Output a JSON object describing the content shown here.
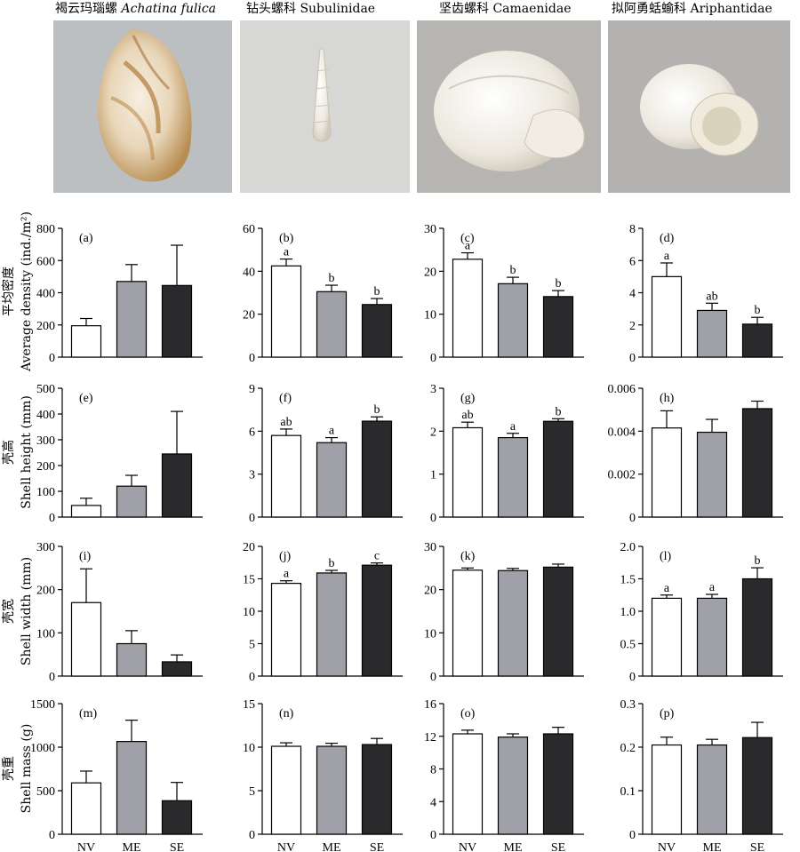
{
  "photos": [
    {
      "name_cn": "褐云玛瑙螺",
      "name_latin": "Achatina fulica",
      "latin_italic": true
    },
    {
      "name_cn": "钻头螺科",
      "name_latin": "Subulinidae",
      "latin_italic": false
    },
    {
      "name_cn": "坚齿螺科",
      "name_latin": "Camaenidae",
      "latin_italic": false
    },
    {
      "name_cn": "拟阿勇蛞蝓科",
      "name_latin": "Ariphantidae",
      "latin_italic": false
    }
  ],
  "row_labels": [
    {
      "cn": "平均密度",
      "en": "Average density (ind./m²)"
    },
    {
      "cn": "壳高",
      "en": "Shell height (mm)"
    },
    {
      "cn": "壳宽",
      "en": "Shell width (mm)"
    },
    {
      "cn": "壳重",
      "en": "Shell mass (g)"
    }
  ],
  "colors": {
    "NV": "#ffffff",
    "ME": "#a0a0a8",
    "SE": "#2a2a2c"
  },
  "chart_data": [
    {
      "panel": "(a)",
      "type": "bar",
      "categories": [
        "NV",
        "ME",
        "SE"
      ],
      "values": [
        195,
        470,
        445
      ],
      "errors": [
        45,
        105,
        250
      ],
      "letters": [
        "",
        "",
        ""
      ],
      "ylim": [
        0,
        800
      ],
      "yticks": [
        0,
        200,
        400,
        600,
        800
      ]
    },
    {
      "panel": "(e)",
      "type": "bar",
      "categories": [
        "NV",
        "ME",
        "SE"
      ],
      "values": [
        45,
        120,
        245
      ],
      "errors": [
        28,
        42,
        165
      ],
      "letters": [
        "",
        "",
        ""
      ],
      "ylim": [
        0,
        500
      ],
      "yticks": [
        0,
        100,
        200,
        300,
        400,
        500
      ]
    },
    {
      "panel": "(i)",
      "type": "bar",
      "categories": [
        "NV",
        "ME",
        "SE"
      ],
      "values": [
        170,
        75,
        33
      ],
      "errors": [
        78,
        30,
        16
      ],
      "letters": [
        "",
        "",
        ""
      ],
      "ylim": [
        0,
        300
      ],
      "yticks": [
        0,
        100,
        200,
        300
      ]
    },
    {
      "panel": "(m)",
      "type": "bar",
      "categories": [
        "NV",
        "ME",
        "SE"
      ],
      "values": [
        590,
        1065,
        385
      ],
      "errors": [
        135,
        245,
        210
      ],
      "letters": [
        "",
        "",
        ""
      ],
      "ylim": [
        0,
        1500
      ],
      "yticks": [
        0,
        500,
        1000,
        1500
      ]
    },
    {
      "panel": "(b)",
      "type": "bar",
      "categories": [
        "NV",
        "ME",
        "SE"
      ],
      "values": [
        42.5,
        30.5,
        24.5
      ],
      "errors": [
        3.2,
        3,
        2.8
      ],
      "letters": [
        "a",
        "b",
        "b"
      ],
      "ylim": [
        0,
        60
      ],
      "yticks": [
        0,
        20,
        40,
        60
      ]
    },
    {
      "panel": "(f)",
      "type": "bar",
      "categories": [
        "NV",
        "ME",
        "SE"
      ],
      "values": [
        5.7,
        5.2,
        6.7
      ],
      "errors": [
        0.45,
        0.35,
        0.3
      ],
      "letters": [
        "ab",
        "a",
        "b"
      ],
      "ylim": [
        0,
        9
      ],
      "yticks": [
        0,
        3,
        6,
        9
      ]
    },
    {
      "panel": "(j)",
      "type": "bar",
      "categories": [
        "NV",
        "ME",
        "SE"
      ],
      "values": [
        14.3,
        15.9,
        17.1
      ],
      "errors": [
        0.4,
        0.4,
        0.35
      ],
      "letters": [
        "a",
        "b",
        "c"
      ],
      "ylim": [
        0,
        20
      ],
      "yticks": [
        0,
        5,
        10,
        15,
        20
      ]
    },
    {
      "panel": "(n)",
      "type": "bar",
      "categories": [
        "NV",
        "ME",
        "SE"
      ],
      "values": [
        10.1,
        10.1,
        10.3
      ],
      "errors": [
        0.4,
        0.35,
        0.7
      ],
      "letters": [
        "",
        "",
        ""
      ],
      "ylim": [
        0,
        15
      ],
      "yticks": [
        0,
        5,
        10,
        15
      ]
    },
    {
      "panel": "(c)",
      "type": "bar",
      "categories": [
        "NV",
        "ME",
        "SE"
      ],
      "values": [
        22.8,
        17.1,
        14.1
      ],
      "errors": [
        1.5,
        1.5,
        1.4
      ],
      "letters": [
        "a",
        "b",
        "b"
      ],
      "ylim": [
        0,
        30
      ],
      "yticks": [
        0,
        10,
        20,
        30
      ]
    },
    {
      "panel": "(g)",
      "type": "bar",
      "categories": [
        "NV",
        "ME",
        "SE"
      ],
      "values": [
        2.08,
        1.85,
        2.23
      ],
      "errors": [
        0.13,
        0.1,
        0.06
      ],
      "letters": [
        "ab",
        "a",
        "b"
      ],
      "ylim": [
        0,
        3
      ],
      "yticks": [
        0,
        1,
        2,
        3
      ]
    },
    {
      "panel": "(k)",
      "type": "bar",
      "categories": [
        "NV",
        "ME",
        "SE"
      ],
      "values": [
        24.5,
        24.4,
        25.2
      ],
      "errors": [
        0.5,
        0.5,
        0.7
      ],
      "letters": [
        "",
        "",
        ""
      ],
      "ylim": [
        0,
        30
      ],
      "yticks": [
        0,
        10,
        20,
        30
      ]
    },
    {
      "panel": "(o)",
      "type": "bar",
      "categories": [
        "NV",
        "ME",
        "SE"
      ],
      "values": [
        12.3,
        11.9,
        12.3
      ],
      "errors": [
        0.45,
        0.4,
        0.8
      ],
      "letters": [
        "",
        "",
        ""
      ],
      "ylim": [
        0,
        16
      ],
      "yticks": [
        0,
        4,
        8,
        12,
        16
      ]
    },
    {
      "panel": "(d)",
      "type": "bar",
      "categories": [
        "NV",
        "ME",
        "SE"
      ],
      "values": [
        5.0,
        2.9,
        2.05
      ],
      "errors": [
        0.85,
        0.45,
        0.42
      ],
      "letters": [
        "a",
        "ab",
        "b"
      ],
      "ylim": [
        0,
        8
      ],
      "yticks": [
        0,
        2,
        4,
        6,
        8
      ]
    },
    {
      "panel": "(h)",
      "type": "bar",
      "categories": [
        "NV",
        "ME",
        "SE"
      ],
      "values": [
        0.00415,
        0.00395,
        0.00505
      ],
      "errors": [
        0.0008,
        0.0006,
        0.00035
      ],
      "letters": [
        "",
        "",
        ""
      ],
      "ylim": [
        0,
        0.006
      ],
      "yticks": [
        0,
        0.002,
        0.004,
        0.006
      ],
      "tick_labels": [
        "0",
        "0.002",
        "0.004",
        "0.006"
      ]
    },
    {
      "panel": "(l)",
      "type": "bar",
      "categories": [
        "NV",
        "ME",
        "SE"
      ],
      "values": [
        1.2,
        1.2,
        1.5
      ],
      "errors": [
        0.05,
        0.06,
        0.17
      ],
      "letters": [
        "a",
        "a",
        "b"
      ],
      "ylim": [
        0,
        2
      ],
      "yticks": [
        0,
        0.5,
        1,
        1.5,
        2
      ],
      "tick_labels": [
        "0",
        "0.5",
        "1.0",
        "1.5",
        "2.0"
      ]
    },
    {
      "panel": "(p)",
      "type": "bar",
      "categories": [
        "NV",
        "ME",
        "SE"
      ],
      "values": [
        0.205,
        0.205,
        0.222
      ],
      "errors": [
        0.018,
        0.013,
        0.035
      ],
      "letters": [
        "",
        "",
        ""
      ],
      "ylim": [
        0,
        0.3
      ],
      "yticks": [
        0,
        0.1,
        0.2,
        0.3
      ],
      "tick_labels": [
        "0",
        "0.1",
        "0.2",
        "0.3"
      ]
    }
  ],
  "x_axis_labels": [
    "NV",
    "ME",
    "SE"
  ]
}
